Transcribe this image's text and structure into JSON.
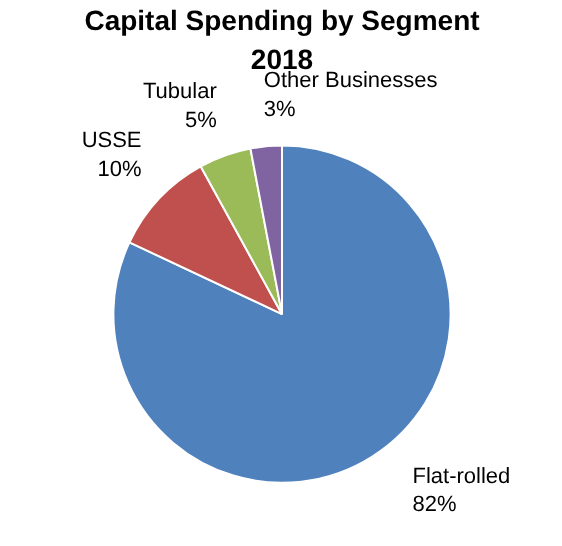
{
  "chart_data": {
    "type": "pie",
    "title": "Capital Spending by Segment\n2018",
    "categories": [
      "Flat-rolled",
      "USSE",
      "Tubular",
      "Other Businesses"
    ],
    "values": [
      82,
      10,
      5,
      3
    ],
    "value_labels": [
      "82%",
      "10%",
      "5%",
      "3%"
    ],
    "colors": [
      "#4f81bd",
      "#c0504d",
      "#9bbb59",
      "#8064a2"
    ]
  }
}
